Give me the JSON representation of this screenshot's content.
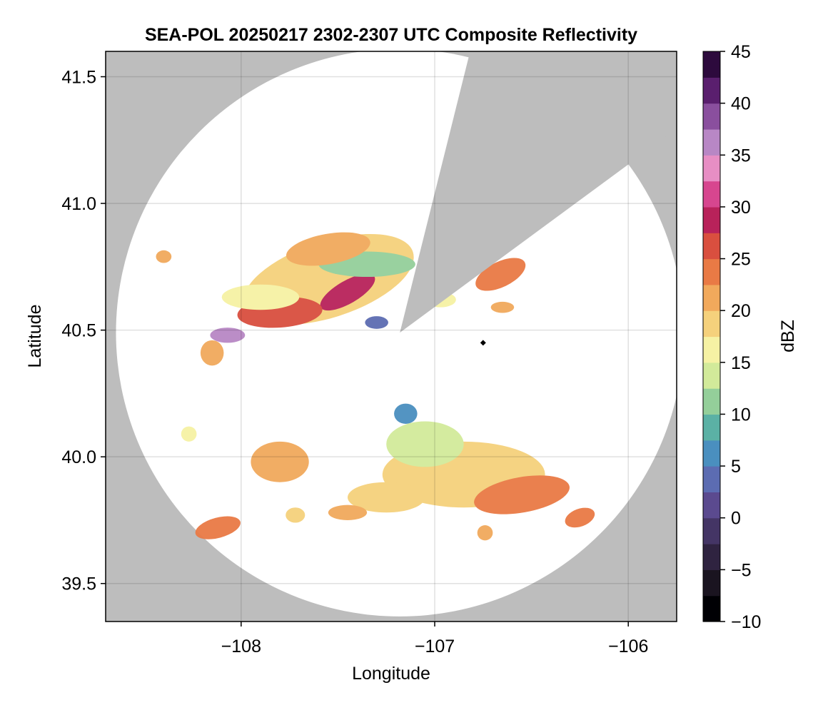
{
  "chart_data": {
    "type": "heatmap",
    "title": "SEA-POL 20250217 2302-2307 UTC Composite Reflectivity",
    "xlabel": "Longitude",
    "ylabel": "Latitude",
    "colorbar_label": "dBZ",
    "xlim": [
      -108.7,
      -105.75
    ],
    "ylim": [
      39.35,
      41.6
    ],
    "xticks": [
      -108,
      -107,
      -106
    ],
    "xtick_labels": [
      "−108",
      "−107",
      "−106"
    ],
    "yticks": [
      39.5,
      40.0,
      40.5,
      41.0,
      41.5
    ],
    "ytick_labels": [
      "39.5",
      "40.0",
      "40.5",
      "41.0",
      "41.5"
    ],
    "colorbar_range": [
      -10,
      45
    ],
    "colorbar_ticks": [
      -10,
      -5,
      0,
      5,
      10,
      15,
      20,
      25,
      30,
      35,
      40,
      45
    ],
    "colorbar_tick_labels": [
      "−10",
      "−5",
      "0",
      "5",
      "10",
      "15",
      "20",
      "25",
      "30",
      "35",
      "40",
      "45"
    ],
    "grid": true,
    "background_color": "#bdbdbd",
    "coverage_color": "#ffffff",
    "radar_site": {
      "lon": -107.18,
      "lat": 40.49
    },
    "radar_range_deg_lat": 1.12,
    "blocked_sectors": [
      {
        "from_lon": -107.18,
        "from_lat": 40.49,
        "edge1": [
          -106.84,
          41.53
        ],
        "edge2": [
          -106.06,
          41.12
        ]
      }
    ],
    "marker": {
      "lon": -106.75,
      "lat": 40.45,
      "shape": "diamond",
      "color": "#000000"
    },
    "colormap": [
      "#000004",
      "#1a1420",
      "#2f2340",
      "#443565",
      "#5b4a8f",
      "#5c6cb2",
      "#4a8fbf",
      "#5bb1a5",
      "#94cf9a",
      "#d2ea9a",
      "#f6f2a4",
      "#f5d17c",
      "#f1a95c",
      "#e97a45",
      "#d94f3f",
      "#b8225a",
      "#d7468f",
      "#e78ec4",
      "#b887c5",
      "#8a4f9e",
      "#5a1f6e",
      "#2d0a3d"
    ],
    "echoes": [
      {
        "lon": -107.55,
        "lat": 40.7,
        "rx": 0.46,
        "ry": 0.15,
        "rot": -18,
        "dbz": 19
      },
      {
        "lon": -107.45,
        "lat": 40.65,
        "rx": 0.16,
        "ry": 0.045,
        "rot": -30,
        "dbz": 29
      },
      {
        "lon": -107.8,
        "lat": 40.57,
        "rx": 0.22,
        "ry": 0.06,
        "rot": -4,
        "dbz": 26
      },
      {
        "lon": -107.35,
        "lat": 40.76,
        "rx": 0.25,
        "ry": 0.05,
        "rot": 0,
        "dbz": 11
      },
      {
        "lon": -107.55,
        "lat": 40.82,
        "rx": 0.22,
        "ry": 0.06,
        "rot": -10,
        "dbz": 21
      },
      {
        "lon": -108.07,
        "lat": 40.48,
        "rx": 0.09,
        "ry": 0.03,
        "rot": 0,
        "dbz": 36
      },
      {
        "lon": -107.3,
        "lat": 40.53,
        "rx": 0.06,
        "ry": 0.025,
        "rot": 0,
        "dbz": 4
      },
      {
        "lon": -108.15,
        "lat": 40.41,
        "rx": 0.06,
        "ry": 0.05,
        "rot": 0,
        "dbz": 22
      },
      {
        "lon": -107.9,
        "lat": 40.63,
        "rx": 0.2,
        "ry": 0.05,
        "rot": 0,
        "dbz": 17
      },
      {
        "lon": -108.4,
        "lat": 40.79,
        "rx": 0.04,
        "ry": 0.025,
        "rot": 0,
        "dbz": 22
      },
      {
        "lon": -106.66,
        "lat": 40.72,
        "rx": 0.14,
        "ry": 0.05,
        "rot": -26,
        "dbz": 24
      },
      {
        "lon": -106.65,
        "lat": 40.59,
        "rx": 0.06,
        "ry": 0.022,
        "rot": 0,
        "dbz": 22
      },
      {
        "lon": -106.97,
        "lat": 40.62,
        "rx": 0.08,
        "ry": 0.03,
        "rot": 0,
        "dbz": 16
      },
      {
        "lon": -106.85,
        "lat": 39.93,
        "rx": 0.42,
        "ry": 0.13,
        "rot": 0,
        "dbz": 18
      },
      {
        "lon": -107.05,
        "lat": 40.05,
        "rx": 0.2,
        "ry": 0.09,
        "rot": 0,
        "dbz": 14
      },
      {
        "lon": -106.55,
        "lat": 39.85,
        "rx": 0.25,
        "ry": 0.07,
        "rot": -10,
        "dbz": 24
      },
      {
        "lon": -107.15,
        "lat": 40.17,
        "rx": 0.06,
        "ry": 0.04,
        "rot": 0,
        "dbz": 6
      },
      {
        "lon": -107.25,
        "lat": 39.84,
        "rx": 0.2,
        "ry": 0.06,
        "rot": 0,
        "dbz": 19
      },
      {
        "lon": -107.8,
        "lat": 39.98,
        "rx": 0.15,
        "ry": 0.08,
        "rot": 0,
        "dbz": 20
      },
      {
        "lon": -108.12,
        "lat": 39.72,
        "rx": 0.12,
        "ry": 0.04,
        "rot": -15,
        "dbz": 23
      },
      {
        "lon": -107.45,
        "lat": 39.78,
        "rx": 0.1,
        "ry": 0.03,
        "rot": 0,
        "dbz": 21
      },
      {
        "lon": -106.25,
        "lat": 39.76,
        "rx": 0.08,
        "ry": 0.035,
        "rot": -20,
        "dbz": 24
      },
      {
        "lon": -106.74,
        "lat": 39.7,
        "rx": 0.04,
        "ry": 0.03,
        "rot": 0,
        "dbz": 21
      },
      {
        "lon": -108.27,
        "lat": 40.09,
        "rx": 0.04,
        "ry": 0.03,
        "rot": 0,
        "dbz": 17
      },
      {
        "lon": -107.72,
        "lat": 39.77,
        "rx": 0.05,
        "ry": 0.03,
        "rot": 0,
        "dbz": 18
      }
    ]
  }
}
